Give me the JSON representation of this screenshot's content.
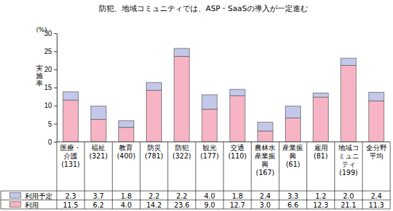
{
  "chart_data": {
    "type": "bar",
    "title": "防犯、地域コミュニティでは、ASP・SaaSの導入が一定進む",
    "ylabel": "実施率",
    "yunit": "(%)",
    "categories": [
      "医療・介護(131)",
      "福祉(321)",
      "教育(400)",
      "防災(781)",
      "防犯(322)",
      "観光(177)",
      "交通(110)",
      "農林水産業振興(167)",
      "産業振興(61)",
      "雇用(81)",
      "地域コミュニティ(199)",
      "全分野平均"
    ],
    "series": [
      {
        "name": "利用予定",
        "color": "#c3c8ea",
        "values": [
          2.3,
          3.7,
          1.8,
          2.2,
          2.2,
          4.0,
          1.8,
          2.4,
          3.3,
          1.2,
          2.0,
          2.4
        ],
        "value_labels": [
          "2.3",
          "3.7",
          "1.8",
          "2.2",
          "2.2",
          "4.0",
          "1.8",
          "2.4",
          "3.3",
          "1.2",
          "2.0",
          "2.4"
        ]
      },
      {
        "name": "利用",
        "color": "#f6b4c4",
        "values": [
          11.5,
          6.2,
          4.0,
          14.2,
          23.6,
          9.0,
          12.7,
          3.0,
          6.6,
          12.3,
          21.1,
          11.3
        ],
        "value_labels": [
          "11.5",
          "6.2",
          "4.0",
          "14.2",
          "23.6",
          "9.0",
          "12.7",
          "3.0",
          "6.6",
          "12.3",
          "21.1",
          "11.3"
        ]
      }
    ],
    "stacked": true,
    "grid": false,
    "ylim": [
      0,
      30
    ],
    "yticks": [
      0,
      5,
      10,
      15,
      20,
      25,
      30
    ]
  }
}
